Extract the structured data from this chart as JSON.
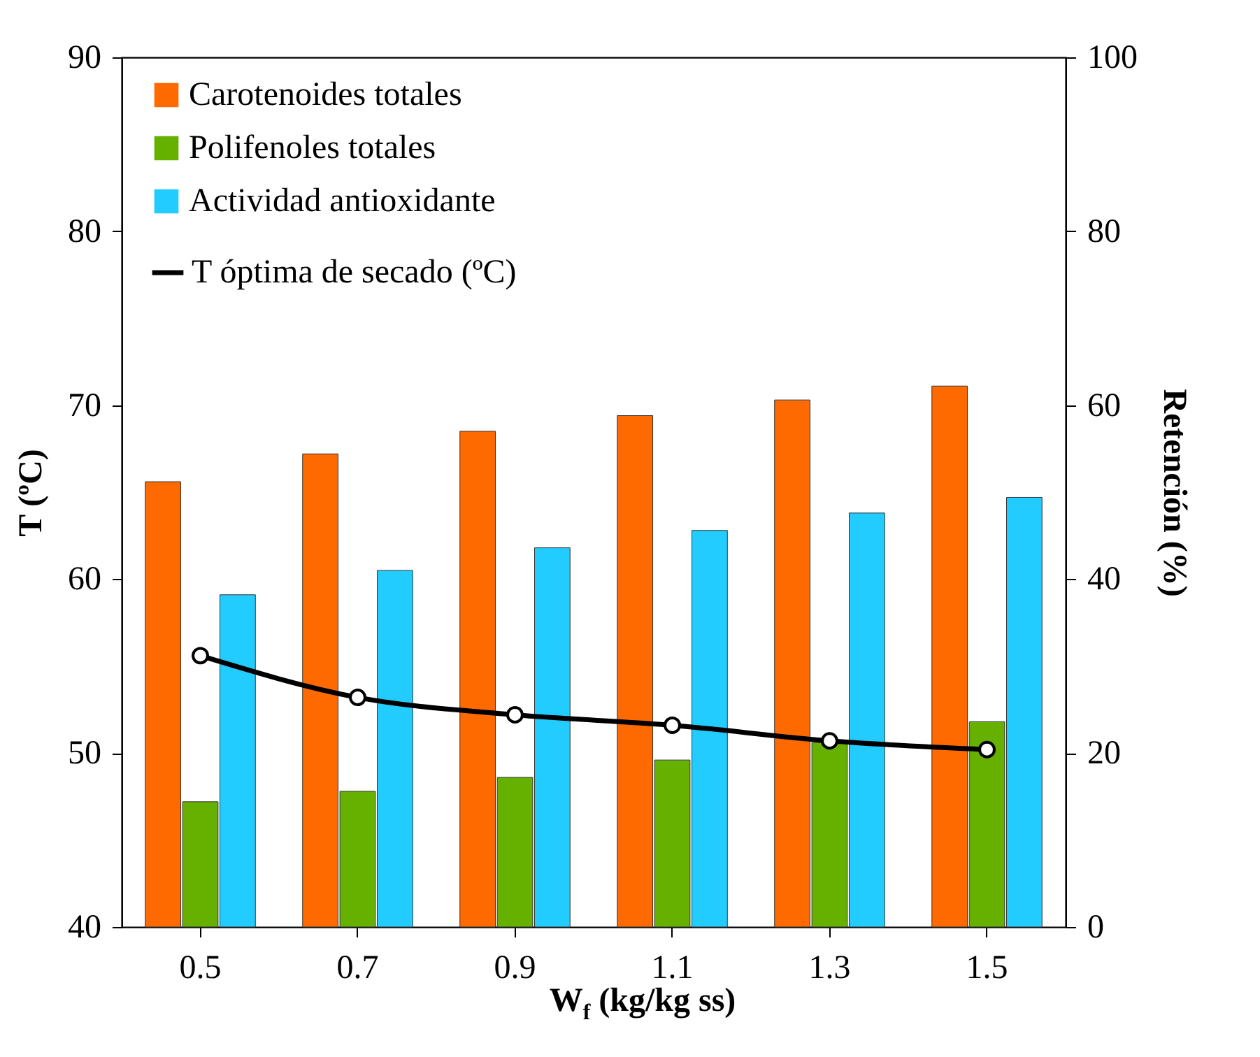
{
  "chart_data": {
    "type": "bar",
    "xlabel": "W$_{f}$ (kg/kg ss)",
    "ylabel": "T (ºC)",
    "y2label": "Retención (%)",
    "categories": [
      "0.5",
      "0.7",
      "0.9",
      "1.1",
      "1.3",
      "1.5"
    ],
    "series": [
      {
        "name": "Carotenoides totales",
        "axis": "y2",
        "color": "#ff6a00",
        "values": [
          51.2,
          54.4,
          57,
          58.8,
          60.6,
          62.2
        ]
      },
      {
        "name": "Polifenoles totales",
        "axis": "y2",
        "color": "#66b000",
        "values": [
          14.4,
          15.6,
          17.2,
          19.2,
          21.2,
          23.6
        ]
      },
      {
        "name": "Actividad antioxidante",
        "axis": "y2",
        "color": "#22ccff",
        "values": [
          38.2,
          41,
          43.6,
          45.6,
          47.6,
          49.4
        ]
      },
      {
        "name": "T óptima de secado (ºC)",
        "type": "line",
        "axis": "y",
        "color": "#000000",
        "values": [
          55.6,
          53.2,
          52.2,
          51.6,
          50.7,
          50.2
        ]
      }
    ],
    "ylim": [
      40,
      90
    ],
    "yticks": [
      40,
      50,
      60,
      70,
      80,
      90
    ],
    "y2lim": [
      0,
      100
    ],
    "y2ticks": [
      0,
      20,
      40,
      60,
      80,
      100
    ],
    "marker": "circle",
    "line_style": "solid",
    "legend": "top left",
    "grid": false
  }
}
